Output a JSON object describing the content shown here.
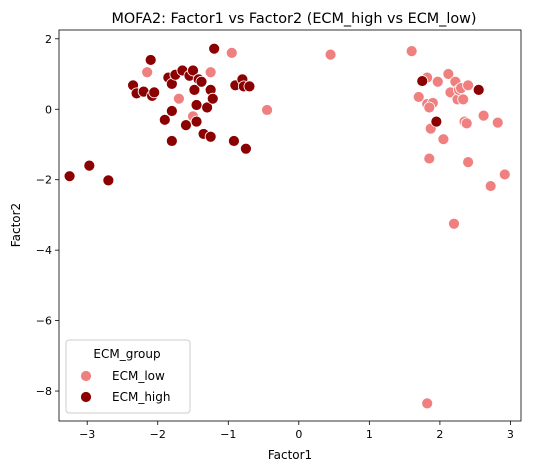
{
  "chart_data": {
    "type": "scatter",
    "title": "MOFA2: Factor1 vs Factor2 (ECM_high vs ECM_low)",
    "xlabel": "Factor1",
    "ylabel": "Factor2",
    "xlim": [
      -3.4,
      3.15
    ],
    "ylim": [
      -8.85,
      2.25
    ],
    "xticks": [
      -3,
      -2,
      -1,
      0,
      1,
      2,
      3
    ],
    "yticks": [
      2,
      0,
      -2,
      -4,
      -6,
      -8
    ],
    "legend": {
      "title": "ECM_group",
      "placement": "lower-left"
    },
    "series": [
      {
        "name": "ECM_low",
        "color": "#f08080",
        "points": [
          [
            -2.15,
            1.05
          ],
          [
            -1.7,
            0.3
          ],
          [
            -1.5,
            -0.2
          ],
          [
            -1.25,
            1.05
          ],
          [
            -0.95,
            1.6
          ],
          [
            -0.45,
            -0.02
          ],
          [
            0.45,
            1.55
          ],
          [
            1.6,
            1.65
          ],
          [
            1.7,
            0.35
          ],
          [
            1.82,
            0.9
          ],
          [
            1.82,
            0.15
          ],
          [
            1.85,
            -1.4
          ],
          [
            1.87,
            -0.55
          ],
          [
            1.9,
            0.18
          ],
          [
            1.97,
            0.78
          ],
          [
            2.05,
            -0.85
          ],
          [
            2.12,
            1.0
          ],
          [
            2.15,
            0.48
          ],
          [
            2.2,
            -3.25
          ],
          [
            2.22,
            0.78
          ],
          [
            2.25,
            0.28
          ],
          [
            2.27,
            0.55
          ],
          [
            2.3,
            0.6
          ],
          [
            2.33,
            0.28
          ],
          [
            2.35,
            -0.35
          ],
          [
            2.38,
            -0.4
          ],
          [
            2.4,
            0.68
          ],
          [
            2.4,
            -1.5
          ],
          [
            2.62,
            -0.18
          ],
          [
            2.72,
            -2.18
          ],
          [
            2.82,
            -0.38
          ],
          [
            2.92,
            -1.85
          ],
          [
            1.82,
            -8.35
          ],
          [
            1.85,
            0.05
          ]
        ]
      },
      {
        "name": "ECM_high",
        "color": "#8b0000",
        "points": [
          [
            -3.25,
            -1.9
          ],
          [
            -2.97,
            -1.6
          ],
          [
            -2.7,
            -2.02
          ],
          [
            -2.35,
            0.68
          ],
          [
            -2.3,
            0.45
          ],
          [
            -2.2,
            0.5
          ],
          [
            -2.1,
            1.4
          ],
          [
            -2.08,
            0.38
          ],
          [
            -2.05,
            0.48
          ],
          [
            -1.9,
            -0.3
          ],
          [
            -1.85,
            0.9
          ],
          [
            -1.8,
            0.72
          ],
          [
            -1.8,
            -0.05
          ],
          [
            -1.8,
            -0.9
          ],
          [
            -1.75,
            0.98
          ],
          [
            -1.65,
            1.1
          ],
          [
            -1.6,
            -0.45
          ],
          [
            -1.55,
            0.95
          ],
          [
            -1.5,
            1.1
          ],
          [
            -1.48,
            0.55
          ],
          [
            -1.45,
            0.12
          ],
          [
            -1.45,
            -0.35
          ],
          [
            -1.42,
            0.85
          ],
          [
            -1.38,
            0.78
          ],
          [
            -1.35,
            -0.7
          ],
          [
            -1.3,
            0.05
          ],
          [
            -1.25,
            0.55
          ],
          [
            -1.25,
            -0.78
          ],
          [
            -1.22,
            0.3
          ],
          [
            -1.2,
            1.72
          ],
          [
            -0.92,
            -0.9
          ],
          [
            -0.9,
            0.68
          ],
          [
            -0.8,
            0.85
          ],
          [
            -0.78,
            0.65
          ],
          [
            -0.75,
            -1.12
          ],
          [
            -0.7,
            0.65
          ],
          [
            1.75,
            0.8
          ],
          [
            1.95,
            -0.35
          ],
          [
            2.55,
            0.55
          ]
        ]
      }
    ]
  }
}
